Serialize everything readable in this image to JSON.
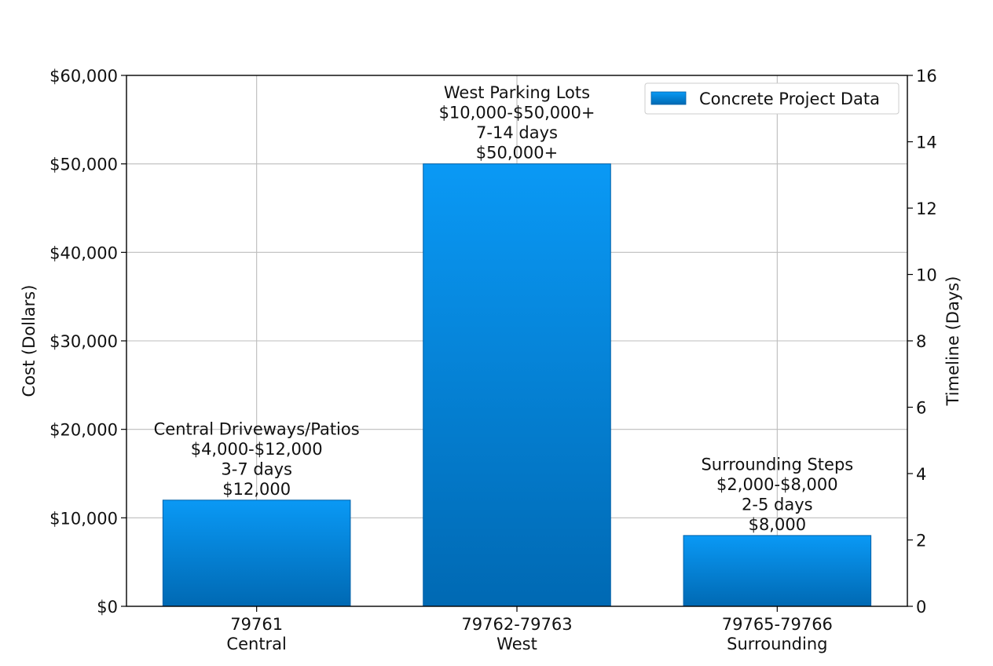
{
  "chart_data": {
    "type": "bar",
    "title": "",
    "xlabel": "",
    "ylabel": "Cost (Dollars)",
    "y2label": "Timeline (Days)",
    "ylim": [
      0,
      60000
    ],
    "y2lim": [
      0,
      16
    ],
    "yticks": [
      "$0",
      "$10,000",
      "$20,000",
      "$30,000",
      "$40,000",
      "$50,000",
      "$60,000"
    ],
    "y2ticks": [
      "0",
      "2",
      "4",
      "6",
      "8",
      "10",
      "12",
      "14",
      "16"
    ],
    "grid": true,
    "legend": {
      "placement": "top-right",
      "label": "Concrete Project Data"
    },
    "bar_color_top": "#0a99f5",
    "bar_color_bottom": "#0069b3",
    "categories": [
      {
        "code": "79761",
        "area": "Central"
      },
      {
        "code": "79762-79763",
        "area": "West"
      },
      {
        "code": "79765-79766",
        "area": "Surrounding"
      }
    ],
    "values": [
      12000,
      50000,
      8000
    ],
    "annotations": [
      {
        "project": "Central Driveways/Patios",
        "range": "$4,000-$12,000",
        "timeline": "3-7 days",
        "value_label": "$12,000"
      },
      {
        "project": "West Parking Lots",
        "range": "$10,000-$50,000+",
        "timeline": "7-14 days",
        "value_label": "$50,000+"
      },
      {
        "project": "Surrounding Steps",
        "range": "$2,000-$8,000",
        "timeline": "2-5 days",
        "value_label": "$8,000"
      }
    ]
  }
}
